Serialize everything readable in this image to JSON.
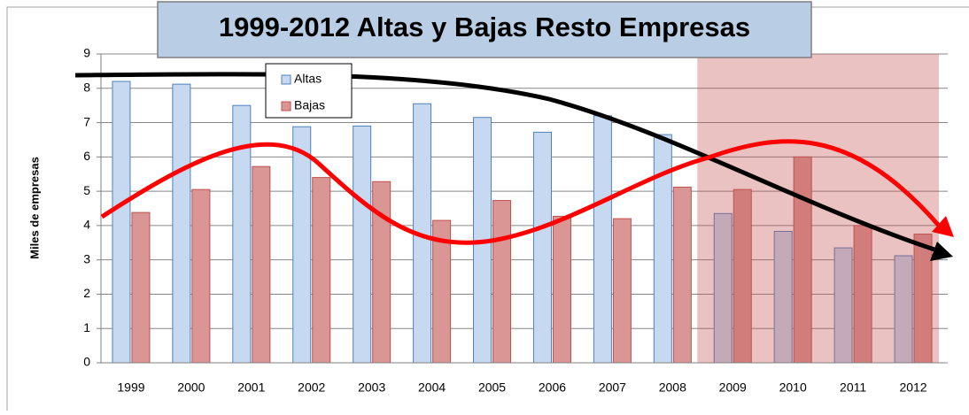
{
  "chart_data": {
    "type": "bar",
    "title": "1999-2012 Altas y Bajas Resto Empresas",
    "ylabel": "Miles de empresas",
    "categories": [
      "1999",
      "2000",
      "2001",
      "2002",
      "2003",
      "2004",
      "2005",
      "2006",
      "2007",
      "2008",
      "2009",
      "2010",
      "2011",
      "2012"
    ],
    "series": [
      {
        "name": "Altas",
        "color": "#c6d9f1",
        "values": [
          8.2,
          8.12,
          7.5,
          6.88,
          6.9,
          7.55,
          7.15,
          6.72,
          7.2,
          6.65,
          4.35,
          3.83,
          3.35,
          3.12
        ]
      },
      {
        "name": "Bajas",
        "color": "#d99694",
        "values": [
          4.38,
          5.05,
          5.72,
          5.4,
          5.28,
          4.15,
          4.73,
          4.27,
          4.2,
          5.12,
          5.05,
          6.0,
          4.0,
          3.75
        ]
      }
    ],
    "ylim": [
      0,
      9
    ],
    "yticks": [
      0,
      1,
      2,
      3,
      4,
      5,
      6,
      7,
      8,
      9
    ],
    "grid": true
  }
}
